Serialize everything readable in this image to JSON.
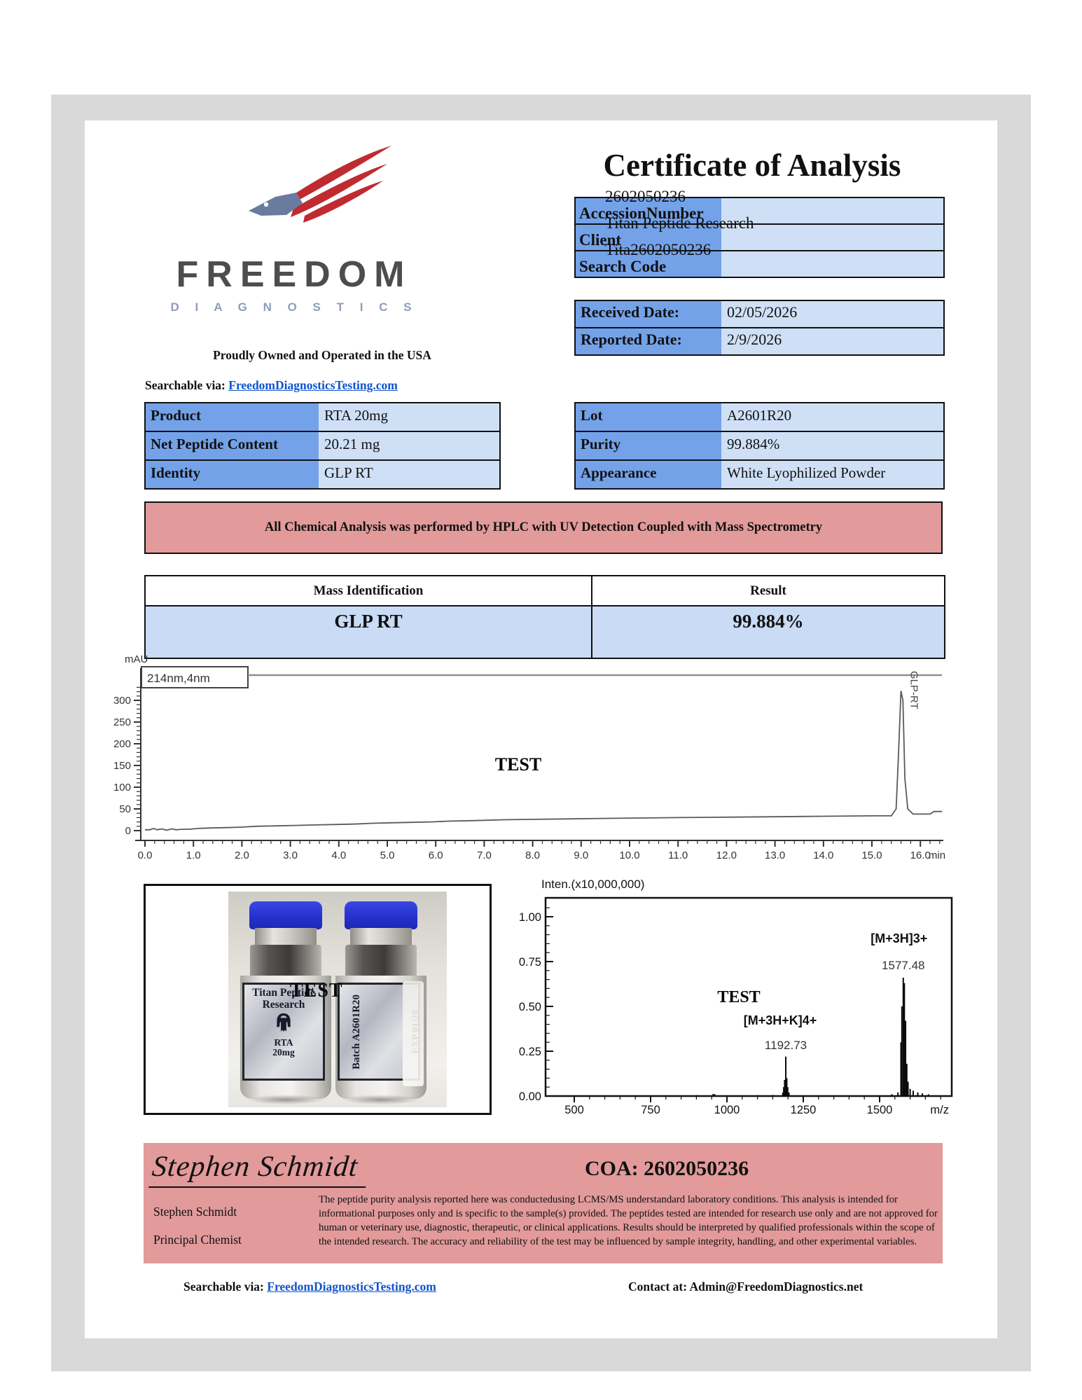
{
  "header": {
    "title": "Certificate of Analysis",
    "logo_word": "FREEDOM",
    "logo_sub": "D I A G N O S T I C S",
    "proudly": "Proudly Owned and Operated in the USA",
    "searchable_label": "Searchable via:",
    "searchable_link": "FreedomDiagnosticsTesting.com"
  },
  "accession_table": {
    "rows": [
      {
        "label": "AccessionNumber",
        "value": "2602050236"
      },
      {
        "label": "Client",
        "value": "Titan Peptide Research"
      },
      {
        "label": "Search Code",
        "value": "Tita2602050236"
      }
    ]
  },
  "dates_table": {
    "rows": [
      {
        "label": "Received Date:",
        "value": "02/05/2026"
      },
      {
        "label": "Reported Date:",
        "value": "2/9/2026"
      }
    ]
  },
  "product_table": {
    "rows": [
      {
        "label": "Product",
        "value": "RTA 20mg"
      },
      {
        "label": "Net Peptide Content",
        "value": "20.21 mg"
      },
      {
        "label": "Identity",
        "value": "GLP RT"
      }
    ]
  },
  "lot_table": {
    "rows": [
      {
        "label": "Lot",
        "value": "A2601R20"
      },
      {
        "label": "Purity",
        "value": "99.884%"
      },
      {
        "label": "Appearance",
        "value": "White Lyophilized Powder"
      }
    ]
  },
  "banner_text": "All Chemical Analysis was performed by HPLC with UV Detection Coupled with Mass Spectrometry",
  "mass_table": {
    "headers": [
      "Mass Identification",
      "Result"
    ],
    "row": [
      "GLP RT",
      "99.884%"
    ]
  },
  "vial_photo": {
    "brand_line1": "Titan Peptide",
    "brand_line2": "Research",
    "product": "RTA",
    "strength": "20mg",
    "batch": "Batch A2601R20",
    "exp": "EXP 01/28",
    "watermark": "TEST"
  },
  "signature": {
    "script_name": "Stephen Schmidt",
    "coa_line": "COA: 2602050236",
    "name": "Stephen Schmidt",
    "title": "Principal Chemist",
    "disclaimer": "The peptide purity analysis reported here was conductedusing LCMS/MS understandard laboratory conditions. This analysis is intended for informational purposes only and is specific to the sample(s) provided. The peptides tested are intended for research use only and are not approved for human or veterinary use, diagnostic, therapeutic, or clinical applications. Results should be interpreted by qualified professionals within the scope of the intended research. The accuracy and reliability of the test may be influenced by sample integrity, handling, and other experimental variables."
  },
  "footer": {
    "searchable_label": "Searchable via:",
    "searchable_link": "FreedomDiagnosticsTesting.com",
    "contact": "Contact at: Admin@FreedomDiagnostics.net"
  },
  "colors": {
    "label_cell_blue": "#74a2e9",
    "value_cell_blue": "#cfe0f6",
    "banner_pink": "#e29a9a",
    "link_blue": "#1155cc",
    "logo_red": "#bf2b30",
    "logo_steel_blue": "#6a7ba0",
    "cap_blue": "#2531cf"
  },
  "chart_data": [
    {
      "id": "hplc_chromatogram",
      "type": "line",
      "ylabel": "mAU",
      "xlabel": "min",
      "legend": [
        "214nm,4nm"
      ],
      "ylim": [
        0,
        340
      ],
      "xlim": [
        0,
        16.45
      ],
      "y_ticks": [
        0,
        50,
        100,
        150,
        200,
        250,
        300
      ],
      "x_ticks": [
        0,
        1,
        2,
        3,
        4,
        5,
        6,
        7,
        8,
        9,
        10,
        11,
        12,
        13,
        14,
        15,
        16
      ],
      "grid": false,
      "watermark": "TEST",
      "peak": {
        "label": "GLP-RT",
        "rt_min": 15.6,
        "height_mau": 322
      },
      "points": [
        [
          0,
          2
        ],
        [
          0.1,
          2
        ],
        [
          0.18,
          5
        ],
        [
          0.25,
          2
        ],
        [
          0.35,
          4
        ],
        [
          0.45,
          1
        ],
        [
          0.55,
          4
        ],
        [
          0.65,
          2
        ],
        [
          0.75,
          3
        ],
        [
          0.9,
          3
        ],
        [
          1.1,
          5
        ],
        [
          1.3,
          6
        ],
        [
          1.7,
          7
        ],
        [
          2.0,
          8
        ],
        [
          2.3,
          10
        ],
        [
          2.7,
          11
        ],
        [
          3.1,
          12
        ],
        [
          3.5,
          13
        ],
        [
          3.9,
          14
        ],
        [
          4.3,
          15
        ],
        [
          4.7,
          17
        ],
        [
          5.1,
          18
        ],
        [
          5.5,
          19
        ],
        [
          5.9,
          20
        ],
        [
          6.3,
          22
        ],
        [
          6.8,
          23
        ],
        [
          7.4,
          25
        ],
        [
          8.0,
          26
        ],
        [
          8.7,
          27
        ],
        [
          9.4,
          28
        ],
        [
          10.2,
          29
        ],
        [
          11.0,
          30
        ],
        [
          12.0,
          31
        ],
        [
          13.0,
          32
        ],
        [
          14.0,
          33
        ],
        [
          15.0,
          34
        ],
        [
          15.4,
          34
        ],
        [
          15.5,
          50
        ],
        [
          15.55,
          180
        ],
        [
          15.6,
          322
        ],
        [
          15.64,
          300
        ],
        [
          15.68,
          120
        ],
        [
          15.74,
          50
        ],
        [
          15.85,
          38
        ],
        [
          16.0,
          38
        ],
        [
          16.2,
          38
        ],
        [
          16.28,
          44
        ],
        [
          16.45,
          44
        ]
      ]
    },
    {
      "id": "mass_spectrum",
      "type": "line",
      "ylabel": "Inten.(x10,000,000)",
      "xlabel": "m/z",
      "ylim": [
        0,
        1.1
      ],
      "xlim": [
        450,
        1740
      ],
      "y_tick_labels": [
        "0.00",
        "0.25",
        "0.50",
        "0.75",
        "1.00"
      ],
      "y_ticks": [
        0,
        0.25,
        0.5,
        0.75,
        1.0
      ],
      "x_ticks": [
        500,
        750,
        1000,
        1250,
        1500
      ],
      "grid": false,
      "watermark": "TEST",
      "annotations": [
        {
          "label": "[M+3H+K]4+",
          "value_label": "1192.73",
          "mz": 1192.73,
          "intensity": 0.22
        },
        {
          "label": "[M+3H]3+",
          "value_label": "1577.48",
          "mz": 1577.48,
          "intensity": 0.66
        }
      ],
      "sticks": [
        [
          510,
          0.004
        ],
        [
          600,
          0.003
        ],
        [
          700,
          0.004
        ],
        [
          800,
          0.004
        ],
        [
          900,
          0.005
        ],
        [
          955,
          0.012
        ],
        [
          960,
          0.01
        ],
        [
          1000,
          0.004
        ],
        [
          1100,
          0.005
        ],
        [
          1150,
          0.006
        ],
        [
          1183,
          0.02
        ],
        [
          1186,
          0.05
        ],
        [
          1189,
          0.09
        ],
        [
          1192.73,
          0.22
        ],
        [
          1196,
          0.1
        ],
        [
          1199,
          0.05
        ],
        [
          1203,
          0.02
        ],
        [
          1250,
          0.004
        ],
        [
          1350,
          0.004
        ],
        [
          1450,
          0.004
        ],
        [
          1540,
          0.01
        ],
        [
          1560,
          0.02
        ],
        [
          1570,
          0.3
        ],
        [
          1573,
          0.5
        ],
        [
          1577.48,
          0.66
        ],
        [
          1581,
          0.63
        ],
        [
          1585,
          0.42
        ],
        [
          1589,
          0.18
        ],
        [
          1593,
          0.08
        ],
        [
          1600,
          0.04
        ],
        [
          1610,
          0.03
        ],
        [
          1625,
          0.02
        ],
        [
          1640,
          0.015
        ],
        [
          1660,
          0.01
        ]
      ]
    }
  ]
}
